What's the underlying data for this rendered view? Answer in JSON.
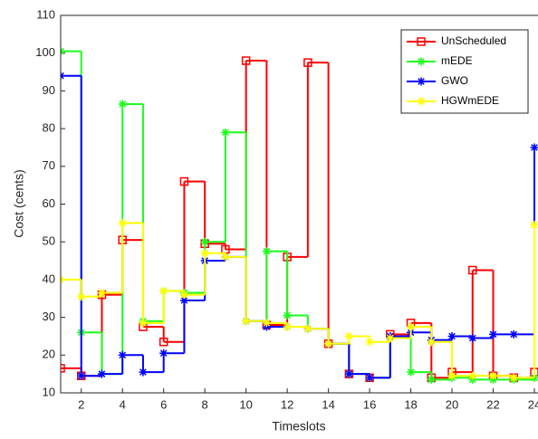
{
  "chart_data": {
    "type": "stairs",
    "x_label": "Timeslots",
    "y_label": "Cost (cents)",
    "x": [
      1,
      2,
      3,
      4,
      5,
      6,
      7,
      8,
      9,
      10,
      11,
      12,
      13,
      14,
      15,
      16,
      17,
      18,
      19,
      20,
      21,
      22,
      23,
      24
    ],
    "xlim": [
      1,
      24
    ],
    "xticks": [
      2,
      4,
      6,
      8,
      10,
      12,
      14,
      16,
      18,
      20,
      22,
      24
    ],
    "ylim": [
      10,
      110
    ],
    "yticks": [
      10,
      20,
      30,
      40,
      50,
      60,
      70,
      80,
      90,
      100,
      110
    ],
    "legend": "northeast",
    "series": [
      {
        "name": "UnScheduled",
        "color": "#ff0000",
        "marker": "square",
        "values": [
          16.5,
          14.5,
          36,
          50.5,
          27.5,
          23.5,
          66,
          49.5,
          48,
          98,
          28,
          46,
          97.5,
          23,
          15,
          14,
          25.5,
          28.5,
          14,
          15.5,
          42.5,
          14.5,
          14,
          15.5
        ]
      },
      {
        "name": "mEDE",
        "color": "#1aff1a",
        "marker": "asterisk",
        "values": [
          100.5,
          26,
          15,
          86.5,
          29,
          37,
          36.5,
          50,
          79,
          29,
          47.5,
          30.5,
          27,
          23,
          15,
          14,
          24.5,
          15.5,
          13.5,
          14,
          13.5,
          13.5,
          13.5,
          14
        ]
      },
      {
        "name": "GWO",
        "color": "#0000ff",
        "marker": "asterisk",
        "values": [
          94,
          14.5,
          15,
          20,
          15.5,
          20.5,
          34.5,
          45,
          46,
          29,
          27.5,
          27.5,
          27,
          23,
          15,
          14,
          25,
          26,
          24,
          25,
          24.5,
          25.5,
          25.5,
          75
        ]
      },
      {
        "name": "HGWmEDE",
        "color": "#ffff00",
        "marker": "asterisk",
        "values": [
          40,
          35.5,
          36.5,
          55,
          28.5,
          37,
          36,
          47,
          46,
          29,
          28.5,
          27.5,
          27,
          23,
          25,
          23.5,
          24.5,
          27.5,
          23.5,
          14.5,
          14.5,
          14.5,
          14,
          54.5
        ]
      }
    ]
  }
}
